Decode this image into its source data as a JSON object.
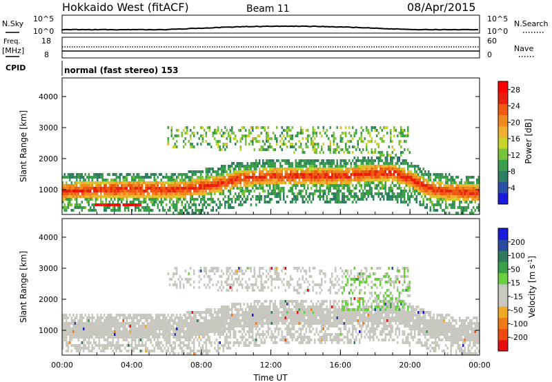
{
  "header": {
    "title": "Hokkaido West (fitACF)",
    "beam": "Beam 11",
    "date": "08/Apr/2015"
  },
  "colors": {
    "power_scale": [
      "#1a1adc",
      "#2a4fa8",
      "#2f7d62",
      "#3a9e4a",
      "#78c23c",
      "#c8d42a",
      "#f0b030",
      "#f08a20",
      "#ef5a10",
      "#e82010",
      "#ff0000"
    ],
    "velocity_scale": [
      "#e81010",
      "#ef4a10",
      "#f07a18",
      "#f0a828",
      "#c8c8c0",
      "#c8c8c0",
      "#6ad040",
      "#3aa048",
      "#2f7a60",
      "#2a4aa0",
      "#1a1adc"
    ]
  },
  "panels": {
    "nsky": {
      "label": "N.Sky",
      "ticks": [
        "10^5",
        "10^0"
      ]
    },
    "nsearch": {
      "label": "N.Search",
      "ticks": [
        "10^5",
        "10^0"
      ]
    },
    "freq": {
      "label_line1": "Freq.",
      "label_line2": "[MHz]",
      "ticks": [
        "18",
        "8"
      ]
    },
    "nave": {
      "label": "Nave",
      "ticks": [
        "60",
        "0"
      ]
    },
    "cpid": {
      "label": "CPID",
      "value": "normal (fast stereo) 153"
    }
  },
  "chart_data": [
    {
      "type": "heatmap",
      "name": "power",
      "ylabel": "Slant Range [km]",
      "yticks": [
        1000,
        2000,
        3000,
        4000
      ],
      "ylim": [
        200,
        4600
      ],
      "xticks": [
        "00:00",
        "04:00",
        "08:00",
        "12:00",
        "16:00",
        "20:00",
        "00:00"
      ],
      "xlim_hours": [
        0,
        24
      ],
      "colorbar": {
        "label": "Power [dB]",
        "ticks": [
          4,
          8,
          12,
          16,
          20,
          24,
          28
        ],
        "range": [
          0,
          30
        ]
      },
      "main_band": {
        "hours": [
          0,
          2,
          4,
          6,
          7,
          8,
          9,
          10,
          12,
          14,
          16,
          17,
          18,
          19,
          20,
          21,
          22,
          24
        ],
        "center_km": [
          900,
          950,
          980,
          950,
          980,
          1050,
          1150,
          1300,
          1400,
          1400,
          1400,
          1450,
          1500,
          1500,
          1300,
          1000,
          900,
          850
        ],
        "peak_power_db": 26
      },
      "upper_region_km": [
        2300,
        3000
      ],
      "upper_region_hours": [
        6,
        20
      ]
    },
    {
      "type": "heatmap",
      "name": "velocity",
      "ylabel": "Slant Range [km]",
      "yticks": [
        1000,
        2000,
        3000,
        4000
      ],
      "ylim": [
        200,
        4600
      ],
      "xticks": [
        "00:00",
        "04:00",
        "08:00",
        "12:00",
        "16:00",
        "20:00",
        "00:00"
      ],
      "xlabel": "Time UT",
      "colorbar": {
        "label": "Velocity [m s^-1]",
        "ticks": [
          200,
          100,
          50,
          15,
          -15,
          -50,
          -100,
          -200
        ],
        "range": [
          -250,
          250
        ]
      },
      "dominant_velocity": 0,
      "positive_region_hours": [
        16,
        20
      ]
    }
  ]
}
